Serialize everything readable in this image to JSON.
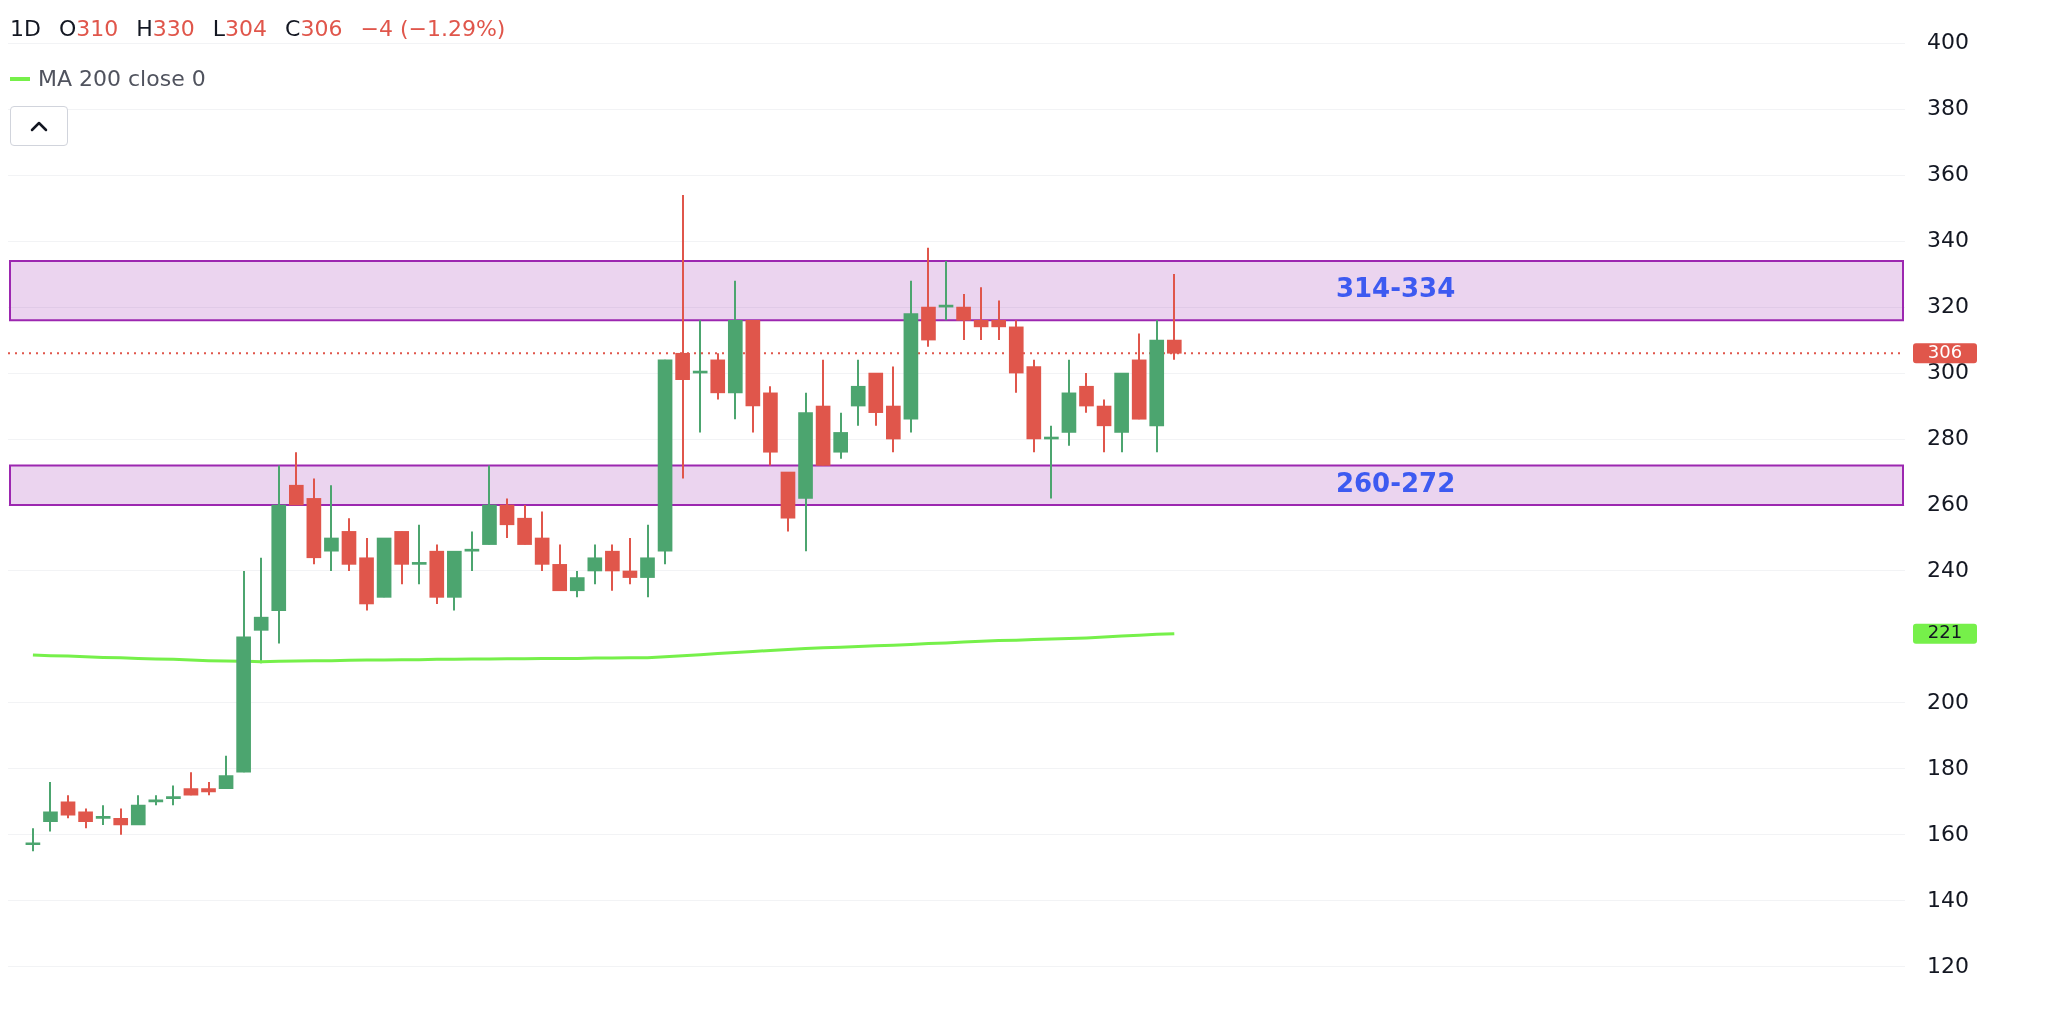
{
  "chart_data": {
    "type": "candlestick",
    "title": "1D",
    "annotations": [
      "O310",
      "H330",
      "L304",
      "C306",
      "−4 (−1.29%)",
      "221"
    ],
    "categories": [
      null,
      null,
      null,
      null,
      null,
      null,
      null,
      null,
      null,
      null,
      null,
      null,
      null,
      null,
      null,
      null,
      null,
      null,
      null,
      null,
      null,
      null,
      null,
      null,
      null,
      null,
      null,
      null,
      null,
      null,
      null,
      null,
      null,
      null,
      null,
      null,
      null,
      null,
      null,
      null,
      null,
      null,
      null,
      null,
      null,
      null,
      null,
      null,
      null,
      null,
      null,
      null,
      null,
      null,
      null,
      null,
      null,
      null,
      null,
      null,
      null,
      null,
      null,
      null,
      null,
      null
    ],
    "ohlc": [
      [
        157,
        162,
        155,
        157
      ],
      [
        164,
        176,
        161,
        167
      ],
      [
        170,
        172,
        165,
        166
      ],
      [
        167,
        168,
        162,
        164
      ],
      [
        165,
        169,
        163,
        165
      ],
      [
        165,
        168,
        160,
        163
      ],
      [
        163,
        172,
        163,
        169
      ],
      [
        170,
        172,
        169,
        170
      ],
      [
        171,
        175,
        169,
        171
      ],
      [
        174,
        179,
        172,
        172
      ],
      [
        174,
        176,
        172,
        173
      ],
      [
        174,
        184,
        174,
        178
      ],
      [
        179,
        240,
        179,
        220
      ],
      [
        222,
        244,
        212,
        226
      ],
      [
        228,
        272,
        218,
        260
      ],
      [
        266,
        276,
        260,
        260
      ],
      [
        262,
        268,
        242,
        244
      ],
      [
        246,
        266,
        240,
        250
      ],
      [
        252,
        256,
        240,
        242
      ],
      [
        244,
        250,
        228,
        230
      ],
      [
        232,
        250,
        232,
        250
      ],
      [
        252,
        252,
        236,
        242
      ],
      [
        242,
        254,
        236,
        242
      ],
      [
        246,
        248,
        230,
        232
      ],
      [
        232,
        246,
        228,
        246
      ],
      [
        246,
        252,
        240,
        246
      ],
      [
        248,
        272,
        248,
        260
      ],
      [
        260,
        262,
        250,
        254
      ],
      [
        256,
        260,
        248,
        248
      ],
      [
        250,
        258,
        240,
        242
      ],
      [
        242,
        248,
        234,
        234
      ],
      [
        234,
        240,
        232,
        238
      ],
      [
        240,
        248,
        236,
        244
      ],
      [
        246,
        248,
        234,
        240
      ],
      [
        240,
        250,
        236,
        238
      ],
      [
        238,
        254,
        232,
        244
      ],
      [
        246,
        304,
        242,
        304
      ],
      [
        306,
        354,
        268,
        298
      ],
      [
        300,
        316,
        282,
        300
      ],
      [
        304,
        306,
        292,
        294
      ],
      [
        294,
        328,
        286,
        316
      ],
      [
        316,
        316,
        282,
        290
      ],
      [
        294,
        296,
        272,
        276
      ],
      [
        270,
        270,
        252,
        256
      ],
      [
        262,
        294,
        246,
        288
      ],
      [
        290,
        304,
        272,
        272
      ],
      [
        276,
        288,
        274,
        282
      ],
      [
        290,
        304,
        284,
        296
      ],
      [
        300,
        300,
        284,
        288
      ],
      [
        290,
        302,
        276,
        280
      ],
      [
        286,
        328,
        282,
        318
      ],
      [
        320,
        338,
        308,
        310
      ],
      [
        320,
        334,
        316,
        320
      ],
      [
        320,
        324,
        310,
        316
      ],
      [
        316,
        326,
        310,
        314
      ],
      [
        316,
        322,
        310,
        314
      ],
      [
        314,
        316,
        294,
        300
      ],
      [
        302,
        304,
        276,
        280
      ],
      [
        280,
        284,
        262,
        280
      ],
      [
        282,
        304,
        278,
        294
      ],
      [
        296,
        300,
        288,
        290
      ],
      [
        290,
        292,
        276,
        284
      ],
      [
        282,
        300,
        276,
        300
      ],
      [
        304,
        312,
        286,
        286
      ],
      [
        284,
        316,
        276,
        310
      ],
      [
        310,
        330,
        304,
        306
      ]
    ],
    "colors": [
      "#4ca56f",
      "#4ca56f",
      "#e0564b",
      "#e0564b",
      "#4ca56f",
      "#e0564b",
      "#4ca56f",
      "#4ca56f",
      "#4ca56f",
      "#e0564b",
      "#e0564b",
      "#4ca56f",
      "#4ca56f",
      "#4ca56f",
      "#4ca56f",
      "#e0564b",
      "#e0564b",
      "#4ca56f",
      "#e0564b",
      "#e0564b",
      "#4ca56f",
      "#e0564b",
      "#4ca56f",
      "#e0564b",
      "#4ca56f",
      "#4ca56f",
      "#4ca56f",
      "#e0564b",
      "#e0564b",
      "#e0564b",
      "#e0564b",
      "#4ca56f",
      "#4ca56f",
      "#e0564b",
      "#e0564b",
      "#4ca56f",
      "#4ca56f",
      "#e0564b",
      "#4ca56f",
      "#e0564b",
      "#4ca56f",
      "#e0564b",
      "#e0564b",
      "#e0564b",
      "#4ca56f",
      "#e0564b",
      "#4ca56f",
      "#4ca56f",
      "#e0564b",
      "#e0564b",
      "#4ca56f",
      "#e0564b",
      "#4ca56f",
      "#e0564b",
      "#e0564b",
      "#e0564b",
      "#e0564b",
      "#e0564b",
      "#4ca56f",
      "#4ca56f",
      "#e0564b",
      "#e0564b",
      "#4ca56f",
      "#e0564b",
      "#4ca56f",
      "#e0564b"
    ],
    "series": [
      {
        "type": "line",
        "name": "MA 200 close 0",
        "color": "#76f04a",
        "values": [
          214.5,
          214.3,
          214.2,
          214,
          213.8,
          213.7,
          213.5,
          213.3,
          213.2,
          213,
          212.8,
          212.7,
          null,
          212.5,
          212.6,
          212.7,
          212.8,
          212.8,
          212.9,
          213,
          213,
          213.1,
          213.1,
          213.2,
          213.2,
          213.3,
          213.3,
          213.4,
          213.4,
          213.5,
          213.5,
          213.5,
          213.6,
          213.6,
          213.7,
          213.7,
          214,
          214.3,
          214.6,
          215,
          215.3,
          215.6,
          215.9,
          216.2,
          216.5,
          216.7,
          216.9,
          217.1,
          217.3,
          217.5,
          217.7,
          218,
          218.2,
          218.5,
          218.7,
          218.9,
          219,
          219.2,
          219.4,
          219.5,
          219.7,
          220,
          220.3,
          220.5,
          220.8,
          221
        ]
      }
    ],
    "ylim": [
      120,
      400
    ],
    "yticks": [
      120,
      140,
      160,
      180,
      200,
      240,
      260,
      280,
      300,
      320,
      340,
      360,
      380,
      400
    ],
    "ref_lines": [
      {
        "axis": "y",
        "value": 306,
        "label": "306",
        "color": "#e0564b",
        "line_style": "dotted"
      }
    ],
    "bands": [
      {
        "axis": "y",
        "from": 260,
        "to": 272,
        "label": "260-272",
        "color": "#9c27b0"
      },
      {
        "axis": "y",
        "from": 316,
        "to": 334,
        "label": "314-334",
        "color": "#9c27b0"
      }
    ],
    "grid": "y",
    "legend": "top left",
    "tick_labels": "y",
    "marker": "none",
    "line_style": "solid"
  }
}
